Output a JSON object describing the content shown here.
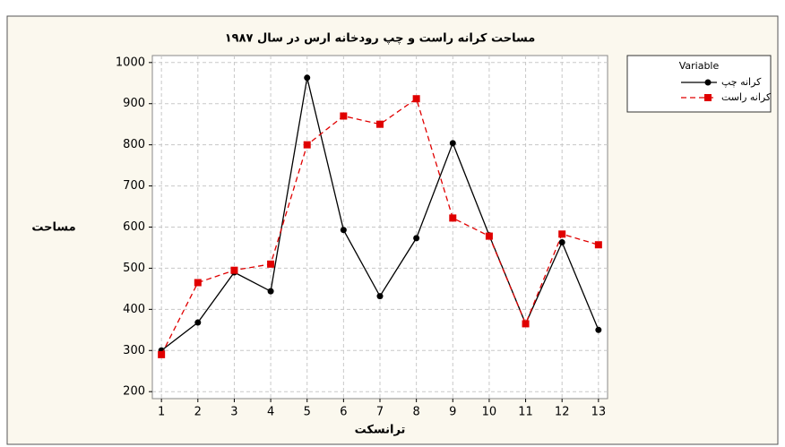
{
  "chart_data": {
    "type": "line",
    "title": "مساحت کرانه راست و چپ رودخانه ارس در سال ۱۹۸۷",
    "y_label": "مساحت",
    "x_label": "ترانسکت",
    "legend_title": "Variable",
    "x": [
      1,
      2,
      3,
      4,
      5,
      6,
      7,
      8,
      9,
      10,
      11,
      12,
      13
    ],
    "series": [
      {
        "name": "کرانه چپ",
        "color": "#000000",
        "marker": "circle",
        "dashed": false,
        "values": [
          300,
          368,
          490,
          444,
          963,
          593,
          432,
          573,
          804,
          580,
          365,
          563,
          350
        ]
      },
      {
        "name": "کرانه راست",
        "color": "#e00000",
        "marker": "square",
        "dashed": true,
        "values": [
          290,
          465,
          495,
          510,
          800,
          870,
          850,
          912,
          622,
          578,
          365,
          583,
          557
        ]
      }
    ],
    "xlim": [
      0.75,
      13.25
    ],
    "xticks": [
      1,
      2,
      3,
      4,
      5,
      6,
      7,
      8,
      9,
      10,
      11,
      12,
      13
    ],
    "ylim": [
      183,
      1017
    ],
    "yticks": [
      200,
      300,
      400,
      500,
      600,
      700,
      800,
      900,
      1000
    ],
    "grid": true
  }
}
